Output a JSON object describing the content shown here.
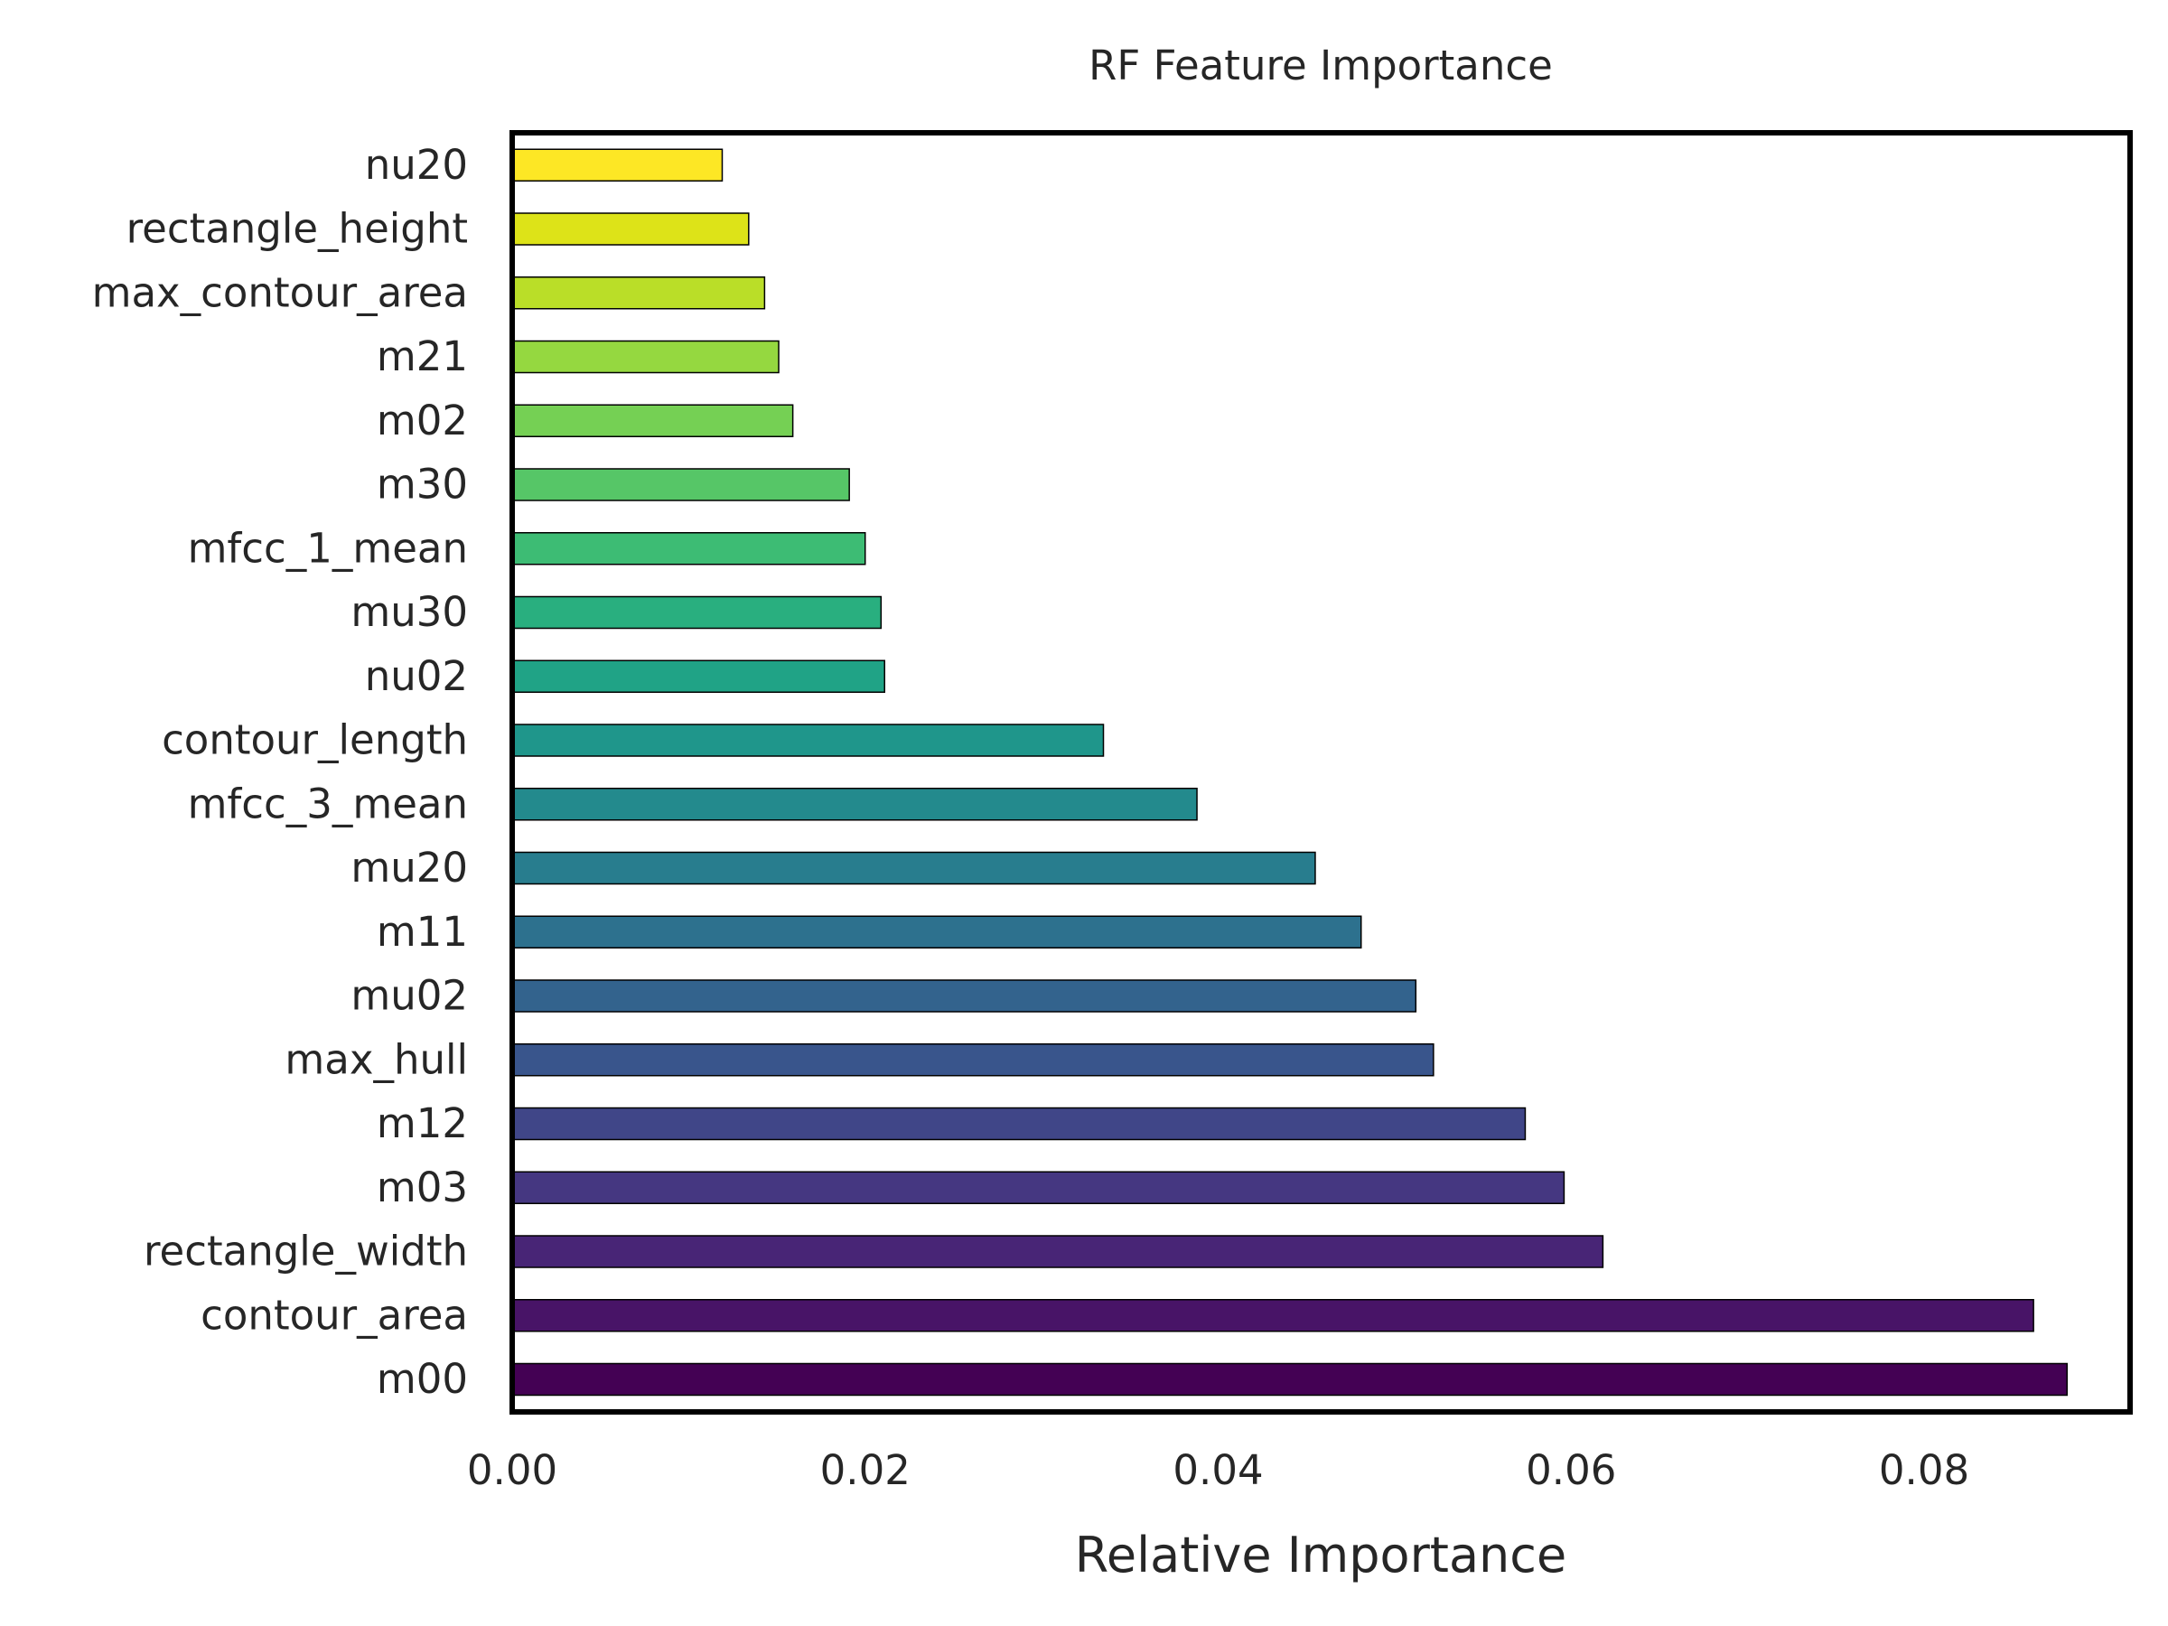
{
  "chart_data": {
    "type": "bar",
    "orientation": "horizontal",
    "title": "RF Feature Importance",
    "xlabel": "Relative Importance",
    "ylabel": "",
    "xlim": [
      0,
      0.092
    ],
    "xticks": [
      0.0,
      0.02,
      0.04,
      0.06,
      0.08
    ],
    "xtick_labels": [
      "0.00",
      "0.02",
      "0.04",
      "0.06",
      "0.08"
    ],
    "grid": false,
    "legend": "none",
    "colormap": "viridis",
    "categories": [
      "m00",
      "contour_area",
      "rectangle_width",
      "m03",
      "m12",
      "max_hull",
      "mu02",
      "m11",
      "mu20",
      "mfcc_3_mean",
      "contour_length",
      "nu02",
      "mu30",
      "mfcc_1_mean",
      "m30",
      "m02",
      "m21",
      "max_contour_area",
      "rectangle_height",
      "nu20"
    ],
    "values": [
      0.0881,
      0.0862,
      0.0618,
      0.0596,
      0.0574,
      0.0522,
      0.0512,
      0.0481,
      0.0455,
      0.0388,
      0.0335,
      0.0211,
      0.0209,
      0.02,
      0.0191,
      0.0159,
      0.0151,
      0.0143,
      0.0134,
      0.0119
    ],
    "colors": [
      "#440154",
      "#481467",
      "#482576",
      "#453781",
      "#404688",
      "#39558c",
      "#33638d",
      "#2d718e",
      "#287d8e",
      "#238a8d",
      "#1f968b",
      "#20a386",
      "#29af7f",
      "#3dbc74",
      "#56c667",
      "#75d054",
      "#95d840",
      "#bade28",
      "#dde318",
      "#fde725"
    ]
  }
}
